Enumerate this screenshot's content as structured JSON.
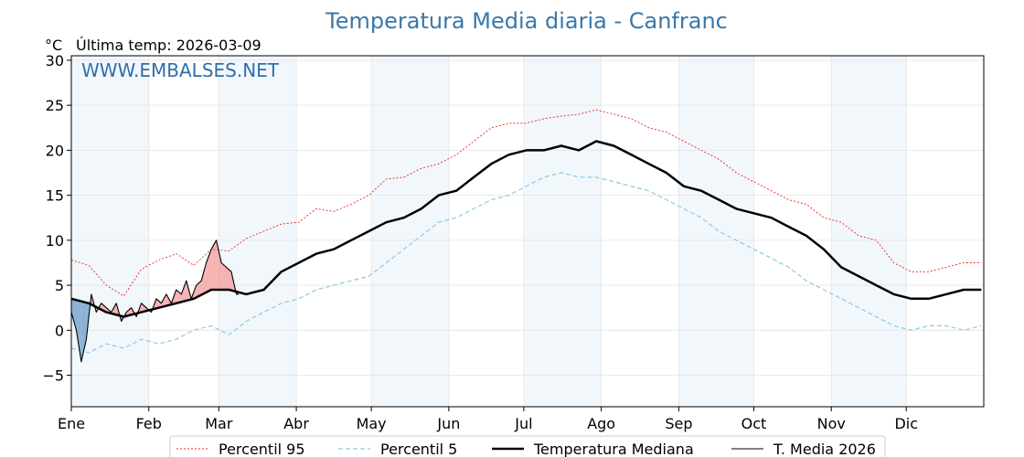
{
  "chart_data": {
    "type": "line",
    "title": "Temperatura Media diaria - Canfranc",
    "unit_label": "°C",
    "last_temp_label": "Última temp: 2026-03-09",
    "watermark": "WWW.EMBALSES.NET",
    "ylim": [
      -8.5,
      30.5
    ],
    "yticks": [
      {
        "value": 30,
        "label": "30"
      },
      {
        "value": 25,
        "label": "25"
      },
      {
        "value": 20,
        "label": "20"
      },
      {
        "value": 15,
        "label": "15"
      },
      {
        "value": 10,
        "label": "10"
      },
      {
        "value": 5,
        "label": "5"
      },
      {
        "value": 0,
        "label": "0"
      },
      {
        "value": -5,
        "label": "−5"
      }
    ],
    "xlim": [
      1,
      366
    ],
    "months": [
      {
        "label": "Ene",
        "day": 1
      },
      {
        "label": "Feb",
        "day": 32
      },
      {
        "label": "Mar",
        "day": 60
      },
      {
        "label": "Abr",
        "day": 91
      },
      {
        "label": "May",
        "day": 121
      },
      {
        "label": "Jun",
        "day": 152
      },
      {
        "label": "Jul",
        "day": 182
      },
      {
        "label": "Ago",
        "day": 213
      },
      {
        "label": "Sep",
        "day": 244
      },
      {
        "label": "Oct",
        "day": 274
      },
      {
        "label": "Nov",
        "day": 305
      },
      {
        "label": "Dic",
        "day": 335
      }
    ],
    "shaded_month_spans": [
      [
        1,
        32
      ],
      [
        60,
        91
      ],
      [
        121,
        152
      ],
      [
        182,
        213
      ],
      [
        244,
        274
      ],
      [
        305,
        335
      ]
    ],
    "grid": true,
    "legend_position": "bottom",
    "series": [
      {
        "name": "Percentil 95",
        "color": "#e8271f",
        "style": "dotted",
        "x": [
          1,
          8,
          15,
          22,
          29,
          36,
          43,
          50,
          57,
          64,
          71,
          78,
          85,
          92,
          99,
          106,
          113,
          120,
          127,
          134,
          141,
          148,
          155,
          162,
          169,
          176,
          183,
          190,
          197,
          204,
          211,
          218,
          225,
          232,
          239,
          246,
          253,
          260,
          267,
          274,
          281,
          288,
          295,
          302,
          309,
          316,
          323,
          330,
          337,
          344,
          351,
          358,
          365
        ],
        "values": [
          7.8,
          7.2,
          5.0,
          3.8,
          6.8,
          7.8,
          8.5,
          7.2,
          9.0,
          8.8,
          10.2,
          11.0,
          11.8,
          12.0,
          13.5,
          13.2,
          14.0,
          15.0,
          16.8,
          17.0,
          18.0,
          18.5,
          19.5,
          21.0,
          22.5,
          23.0,
          23.0,
          23.5,
          23.8,
          24.0,
          24.5,
          24.0,
          23.5,
          22.5,
          22.0,
          21.0,
          20.0,
          19.0,
          17.5,
          16.5,
          15.5,
          14.5,
          14.0,
          12.5,
          12.0,
          10.5,
          10.0,
          7.5,
          6.5,
          6.5,
          7.0,
          7.5,
          7.5
        ]
      },
      {
        "name": "Percentil 5",
        "color": "#8ecbe0",
        "style": "dashed",
        "x": [
          1,
          8,
          15,
          22,
          29,
          36,
          43,
          50,
          57,
          64,
          71,
          78,
          85,
          92,
          99,
          106,
          113,
          120,
          127,
          134,
          141,
          148,
          155,
          162,
          169,
          176,
          183,
          190,
          197,
          204,
          211,
          218,
          225,
          232,
          239,
          246,
          253,
          260,
          267,
          274,
          281,
          288,
          295,
          302,
          309,
          316,
          323,
          330,
          337,
          344,
          351,
          358,
          365
        ],
        "values": [
          -2.0,
          -2.5,
          -1.5,
          -2.0,
          -1.0,
          -1.5,
          -1.0,
          0.0,
          0.5,
          -0.5,
          1.0,
          2.0,
          3.0,
          3.5,
          4.5,
          5.0,
          5.5,
          6.0,
          7.5,
          9.0,
          10.5,
          12.0,
          12.5,
          13.5,
          14.5,
          15.0,
          16.0,
          17.0,
          17.5,
          17.0,
          17.0,
          16.5,
          16.0,
          15.5,
          14.5,
          13.5,
          12.5,
          11.0,
          10.0,
          9.0,
          8.0,
          7.0,
          5.5,
          4.5,
          3.5,
          2.5,
          1.5,
          0.5,
          0.0,
          0.5,
          0.5,
          0.0,
          0.5
        ]
      },
      {
        "name": "Temperatura Mediana",
        "color": "#000000",
        "style": "solid-bold",
        "x": [
          1,
          8,
          15,
          22,
          29,
          36,
          43,
          50,
          57,
          64,
          71,
          78,
          85,
          92,
          99,
          106,
          113,
          120,
          127,
          134,
          141,
          148,
          155,
          162,
          169,
          176,
          183,
          190,
          197,
          204,
          211,
          218,
          225,
          232,
          239,
          246,
          253,
          260,
          267,
          274,
          281,
          288,
          295,
          302,
          309,
          316,
          323,
          330,
          337,
          344,
          351,
          358,
          365
        ],
        "values": [
          3.5,
          3.0,
          2.0,
          1.5,
          2.0,
          2.5,
          3.0,
          3.5,
          4.5,
          4.5,
          4.0,
          4.5,
          6.5,
          7.5,
          8.5,
          9.0,
          10.0,
          11.0,
          12.0,
          12.5,
          13.5,
          15.0,
          15.5,
          17.0,
          18.5,
          19.5,
          20.0,
          20.0,
          20.5,
          20.0,
          21.0,
          20.5,
          19.5,
          18.5,
          17.5,
          16.0,
          15.5,
          14.5,
          13.5,
          13.0,
          12.5,
          11.5,
          10.5,
          9.0,
          7.0,
          6.0,
          5.0,
          4.0,
          3.5,
          3.5,
          4.0,
          4.5,
          4.5
        ]
      },
      {
        "name": "T. Media 2026",
        "color": "#000000",
        "style": "solid-thin",
        "x": [
          1,
          3,
          5,
          7,
          9,
          11,
          13,
          15,
          17,
          19,
          21,
          23,
          25,
          27,
          29,
          31,
          33,
          35,
          37,
          39,
          41,
          43,
          45,
          47,
          49,
          51,
          53,
          55,
          57,
          59,
          61,
          63,
          65,
          67,
          68
        ],
        "values": [
          2.0,
          0.0,
          -3.5,
          -1.0,
          4.0,
          2.0,
          3.0,
          2.5,
          2.0,
          3.0,
          1.0,
          2.0,
          2.5,
          1.5,
          3.0,
          2.5,
          2.0,
          3.5,
          3.0,
          4.0,
          3.0,
          4.5,
          4.0,
          5.5,
          3.5,
          5.0,
          5.5,
          7.5,
          9.0,
          10.0,
          7.5,
          7.0,
          6.5,
          4.0,
          4.0
        ]
      }
    ]
  },
  "legend": {
    "items": [
      {
        "label": "Percentil 95"
      },
      {
        "label": "Percentil 5"
      },
      {
        "label": "Temperatura Mediana"
      },
      {
        "label": "T. Media 2026"
      }
    ]
  }
}
